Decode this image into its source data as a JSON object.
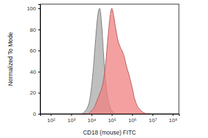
{
  "chart_data": {
    "type": "area",
    "log": "x",
    "x_label": "CD18 (mouse) FITC",
    "y_label": "Normalized To Mode",
    "xlim": [
      30,
      200000000
    ],
    "ylim": [
      0,
      104
    ],
    "xticks": [
      {
        "value": 100,
        "label": "10²"
      },
      {
        "value": 1000,
        "label": "10³"
      },
      {
        "value": 10000,
        "label": "10⁴"
      },
      {
        "value": 100000,
        "label": "10⁵"
      },
      {
        "value": 1000000,
        "label": "10⁶"
      },
      {
        "value": 10000000,
        "label": "10⁷"
      },
      {
        "value": 100000000,
        "label": "10⁸"
      }
    ],
    "yticks": [
      0,
      20,
      40,
      60,
      80,
      100
    ],
    "x": [
      3162,
      3981,
      5012,
      6310,
      7943,
      10000,
      12589,
      15849,
      19953,
      25119,
      31623,
      39811,
      50119,
      63096,
      79433,
      100000,
      125893,
      158489,
      199526,
      251189,
      316228,
      398107,
      501187,
      630957,
      794328,
      1000000,
      1258925,
      1584893,
      1995262,
      2511886,
      3162278,
      3981072,
      5011872,
      6309573,
      7943282
    ],
    "series": [
      {
        "color": "#a9a9a9",
        "values": [
          0,
          1,
          3,
          6,
          12,
          25,
          45,
          70,
          92,
          100,
          85,
          55,
          30,
          15,
          7,
          3,
          1,
          0,
          0,
          0,
          0,
          0,
          0,
          0,
          0,
          0,
          0,
          0,
          0,
          0,
          0,
          0,
          0,
          0,
          0
        ]
      },
      {
        "color": "#f08080",
        "values": [
          0,
          0,
          0,
          0,
          1,
          3,
          5,
          9,
          14,
          19,
          24,
          33,
          48,
          70,
          90,
          100,
          92,
          80,
          70,
          64,
          60,
          55,
          47,
          40,
          33,
          25,
          16,
          10,
          6,
          4,
          2,
          1,
          0,
          0,
          0
        ]
      }
    ]
  }
}
